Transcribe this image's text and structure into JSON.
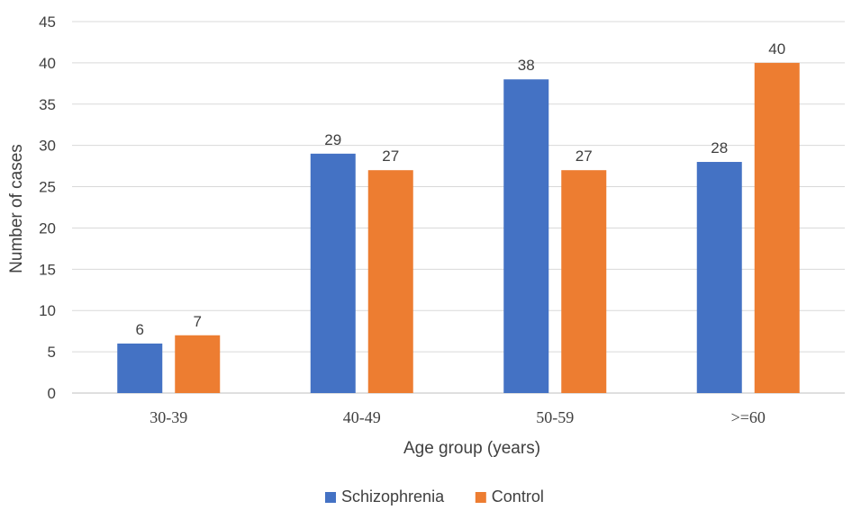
{
  "chart_data": {
    "type": "bar",
    "categories": [
      "30-39",
      "40-49",
      "50-59",
      ">=60"
    ],
    "series": [
      {
        "name": "Schizophrenia",
        "color": "#4472C4",
        "values": [
          6,
          29,
          38,
          28
        ]
      },
      {
        "name": "Control",
        "color": "#ED7D31",
        "values": [
          7,
          27,
          27,
          40
        ]
      }
    ],
    "xlabel": "Age group (years)",
    "ylabel": "Number of cases",
    "ylim": [
      0,
      45
    ],
    "yticks": [
      0,
      5,
      10,
      15,
      20,
      25,
      30,
      35,
      40,
      45
    ],
    "grid": true,
    "data_labels": true,
    "legend_position": "bottom"
  }
}
